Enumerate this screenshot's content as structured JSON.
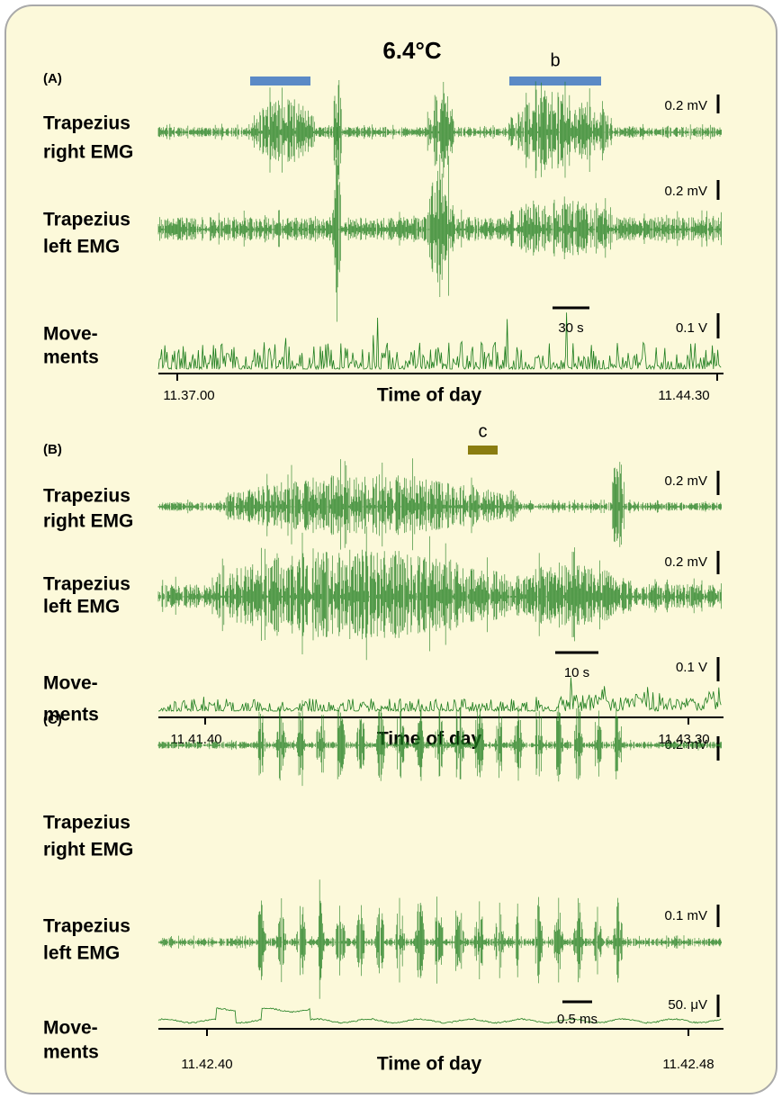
{
  "title": "6.4°C",
  "panels": [
    {
      "label": "(A)",
      "markers": [
        {
          "color": "#5b8ac6"
        },
        {
          "color": "#5b8ac6",
          "label": "b"
        }
      ],
      "channels": [
        {
          "name": [
            "Trapezius",
            "right EMG"
          ],
          "scale": "0.2 mV"
        },
        {
          "name": [
            "Trapezius",
            "left EMG"
          ],
          "scale": "0.2 mV"
        },
        {
          "name": [
            "Move-",
            "ments"
          ],
          "scale": "0.1 V"
        }
      ],
      "time_scale": "30 s",
      "xlabel": "Time of day",
      "xticks": [
        "11.37.00",
        "11.44.30"
      ]
    },
    {
      "label": "(B)",
      "markers": [
        {
          "color": "#8a7d10",
          "label": "c"
        }
      ],
      "channels": [
        {
          "name": [
            "Trapezius",
            "right EMG"
          ],
          "scale": "0.2 mV"
        },
        {
          "name": [
            "Trapezius",
            "left EMG"
          ],
          "scale": "0.2 mV"
        },
        {
          "name": [
            "Move-",
            "ments"
          ],
          "scale": "0.1 V"
        }
      ],
      "time_scale": "10 s",
      "xlabel": "Time of day",
      "xticks": [
        "11.41.40",
        "11.43.30"
      ]
    },
    {
      "label": "(C)",
      "markers": [],
      "channels": [
        {
          "name": [
            "Trapezius",
            "right EMG"
          ],
          "scale": "0.2 mV"
        },
        {
          "name": [
            "Trapezius",
            "left EMG"
          ],
          "scale": "0.1 mV"
        },
        {
          "name": [
            "Move-",
            "ments"
          ],
          "scale": "50. μV"
        }
      ],
      "time_scale": "0.5 ms",
      "xlabel": "Time of day",
      "xticks": [
        "11.42.40",
        "11.42.48"
      ]
    }
  ]
}
